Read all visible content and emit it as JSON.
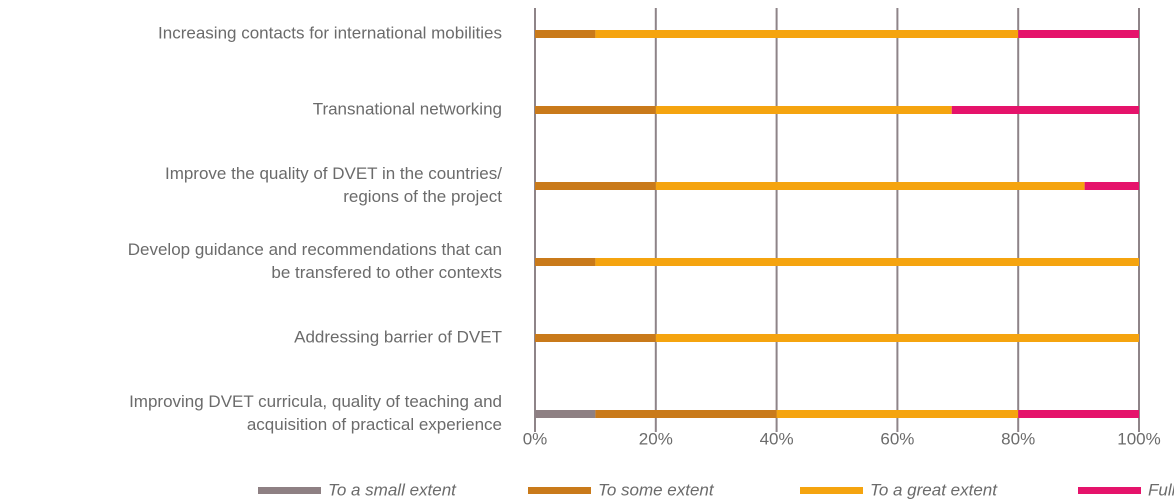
{
  "chart_data": {
    "type": "stacked-bar-horizontal",
    "categories": [
      [
        "Increasing contacts for international mobilities"
      ],
      [
        "Transnational networking"
      ],
      [
        "Improve the quality of DVET in the countries/",
        "regions of the project"
      ],
      [
        "Develop guidance and recommendations that can",
        "be transfered to other contexts"
      ],
      [
        "Addressing barrier of DVET"
      ],
      [
        "Improving DVET curricula, quality of teaching and",
        "acquisition of practical experience"
      ]
    ],
    "series": [
      {
        "name": "To a small extent",
        "color": "#8e8083",
        "values": [
          0,
          0,
          0,
          0,
          0,
          10
        ]
      },
      {
        "name": "To some extent",
        "color": "#c97a1a",
        "values": [
          10,
          20,
          20,
          10,
          20,
          30
        ]
      },
      {
        "name": "To a great extent",
        "color": "#f5a40f",
        "values": [
          70,
          49,
          71,
          90,
          80,
          40
        ]
      },
      {
        "name": "Fully",
        "color": "#e5136b",
        "values": [
          20,
          31,
          9,
          0,
          0,
          20
        ]
      }
    ],
    "xlim": [
      0,
      100
    ],
    "xticks": [
      {
        "value": 0,
        "label": "0%"
      },
      {
        "value": 20,
        "label": "20%"
      },
      {
        "value": 40,
        "label": "40%"
      },
      {
        "value": 60,
        "label": "60%"
      },
      {
        "value": 80,
        "label": "80%"
      },
      {
        "value": 100,
        "label": "100%"
      }
    ],
    "grid": true,
    "legend": "bottom"
  }
}
